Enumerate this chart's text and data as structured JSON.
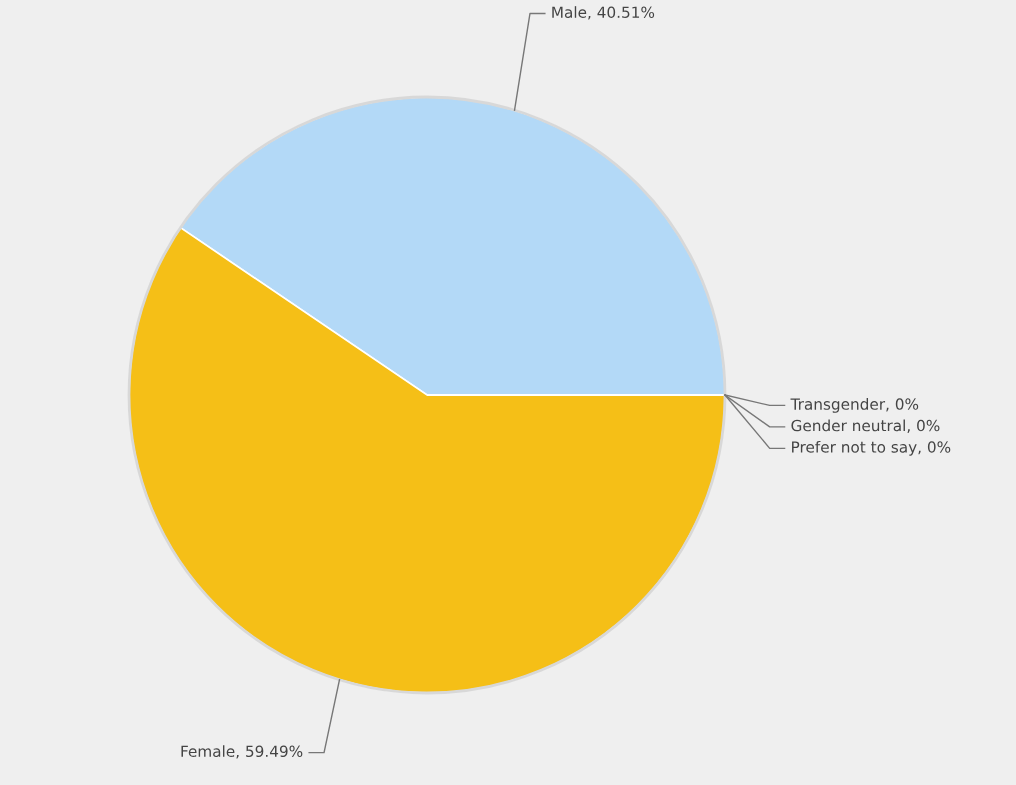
{
  "chart_data": {
    "type": "pie",
    "categories": [
      "Male",
      "Female",
      "Transgender",
      "Gender neutral",
      "Prefer not to say"
    ],
    "values": [
      40.51,
      59.49,
      0,
      0,
      0
    ],
    "colors": [
      "#b3d9f7",
      "#f5bf17",
      "#9cc35a",
      "#e07b39",
      "#8a6fb3"
    ],
    "value_labels": [
      ", 40.51%",
      ", 59.49%",
      ", 0%",
      ", 0%",
      ", 0%"
    ]
  }
}
